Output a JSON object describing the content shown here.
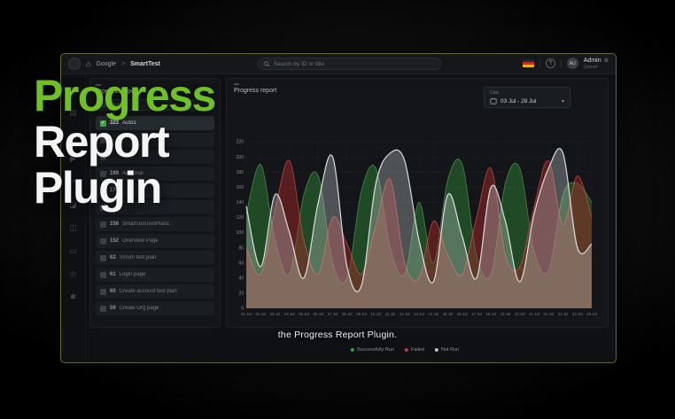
{
  "overlay": {
    "title_line1": "Progress",
    "title_line2": "Report",
    "title_line3": "Plugin",
    "caption": "the Progress Report Plugin.",
    "accent_green": "#6ec124"
  },
  "navbar": {
    "breadcrumb": {
      "project": "Google",
      "separator": ">",
      "item": "SmartTest"
    },
    "search_placeholder": "Search by ID or title",
    "flag_colors": [
      "#262626",
      "#cc2b1d",
      "#f5b800"
    ],
    "help_glyph": "?",
    "user": {
      "initials": "AU",
      "name": "Admin",
      "role": "Owner"
    }
  },
  "rail": {
    "icons": [
      {
        "name": "dashboard-icon",
        "glyph": "▦"
      },
      {
        "name": "test-plans-icon",
        "glyph": "▤"
      },
      {
        "name": "test-cases-icon",
        "glyph": "▣"
      },
      {
        "name": "test-runs-icon",
        "glyph": "▶"
      },
      {
        "name": "schedule-icon",
        "glyph": "◔"
      },
      {
        "name": "reports-icon",
        "glyph": "◪"
      },
      {
        "name": "defects-icon",
        "glyph": "◫"
      },
      {
        "name": "documents-icon",
        "glyph": "▭"
      },
      {
        "name": "search-icon",
        "glyph": "◎"
      },
      {
        "name": "settings-icon",
        "glyph": "✱"
      }
    ]
  },
  "sidebar": {
    "title": "Progress report",
    "search_placeholder": "Search",
    "check_glyph": "✓",
    "items": [
      {
        "id": "323",
        "label": "Auto1",
        "selected": true,
        "checked": true
      },
      {
        "id": "",
        "label": "",
        "selected": false,
        "checked": false
      },
      {
        "id": "",
        "label": "",
        "selected": false,
        "checked": false
      },
      {
        "id": "199",
        "label": "AutoTrial",
        "selected": false,
        "checked": false
      },
      {
        "id": "174",
        "label": "",
        "selected": false,
        "checked": false
      },
      {
        "id": "",
        "label": "",
        "selected": false,
        "checked": false
      },
      {
        "id": "156",
        "label": "SmartTestTestPlan1",
        "selected": false,
        "checked": false
      },
      {
        "id": "152",
        "label": "Overview Page",
        "selected": false,
        "checked": false
      },
      {
        "id": "62",
        "label": "Scrum test plan",
        "selected": false,
        "checked": false
      },
      {
        "id": "61",
        "label": "Login page",
        "selected": false,
        "checked": false
      },
      {
        "id": "60",
        "label": "Create account test plan",
        "selected": false,
        "checked": false
      },
      {
        "id": "59",
        "label": "Create Org page",
        "selected": false,
        "checked": false
      }
    ]
  },
  "main": {
    "title": "Progress report",
    "date_label": "Date",
    "date_range": "03 Jul - 28 Jul",
    "chevron_glyph": "▾"
  },
  "chart_data": {
    "type": "area",
    "title": "Progress report",
    "xlabel": "",
    "ylabel": "",
    "x": [
      "01 Jul",
      "02 Jul",
      "03 Jul",
      "04 Jul",
      "05 Jul",
      "06 Jul",
      "07 Jul",
      "08 Jul",
      "09 Jul",
      "10 Jul",
      "11 Jul",
      "12 Jul",
      "13 Jul",
      "14 Jul",
      "15 Jul",
      "16 Jul",
      "17 Jul",
      "18 Jul",
      "19 Jul",
      "20 Jul",
      "21 Jul",
      "22 Jul",
      "23 Jul",
      "24 Jul",
      "25 Jul"
    ],
    "ylim": [
      0,
      220
    ],
    "ytick": 20,
    "grid": true,
    "legend_position": "bottom",
    "series": [
      {
        "name": "Successfully Run",
        "color": "#3f9a47",
        "fill": "rgba(46,125,50,0.50)",
        "stroke": "rgba(125,195,125,0.55)",
        "width": 0.8,
        "values": [
          125,
          190,
          90,
          45,
          150,
          175,
          60,
          40,
          155,
          185,
          80,
          45,
          140,
          60,
          170,
          190,
          70,
          45,
          165,
          185,
          75,
          50,
          150,
          165,
          140
        ]
      },
      {
        "name": "Failed",
        "color": "#c0392b",
        "fill": "rgba(170,40,40,0.45)",
        "stroke": "rgba(220,90,80,0.75)",
        "width": 0.8,
        "values": [
          80,
          45,
          130,
          195,
          90,
          45,
          120,
          85,
          45,
          110,
          170,
          60,
          40,
          115,
          70,
          45,
          120,
          185,
          70,
          55,
          135,
          195,
          110,
          175,
          120
        ]
      },
      {
        "name": "Not Run",
        "color": "#b9bfc4",
        "fill": "rgba(200,205,210,0.33)",
        "stroke": "rgba(236,239,241,0.9)",
        "width": 1.2,
        "values": [
          135,
          55,
          150,
          100,
          40,
          140,
          200,
          55,
          30,
          165,
          205,
          195,
          90,
          35,
          150,
          95,
          40,
          160,
          115,
          35,
          125,
          185,
          205,
          80,
          85
        ]
      }
    ]
  }
}
